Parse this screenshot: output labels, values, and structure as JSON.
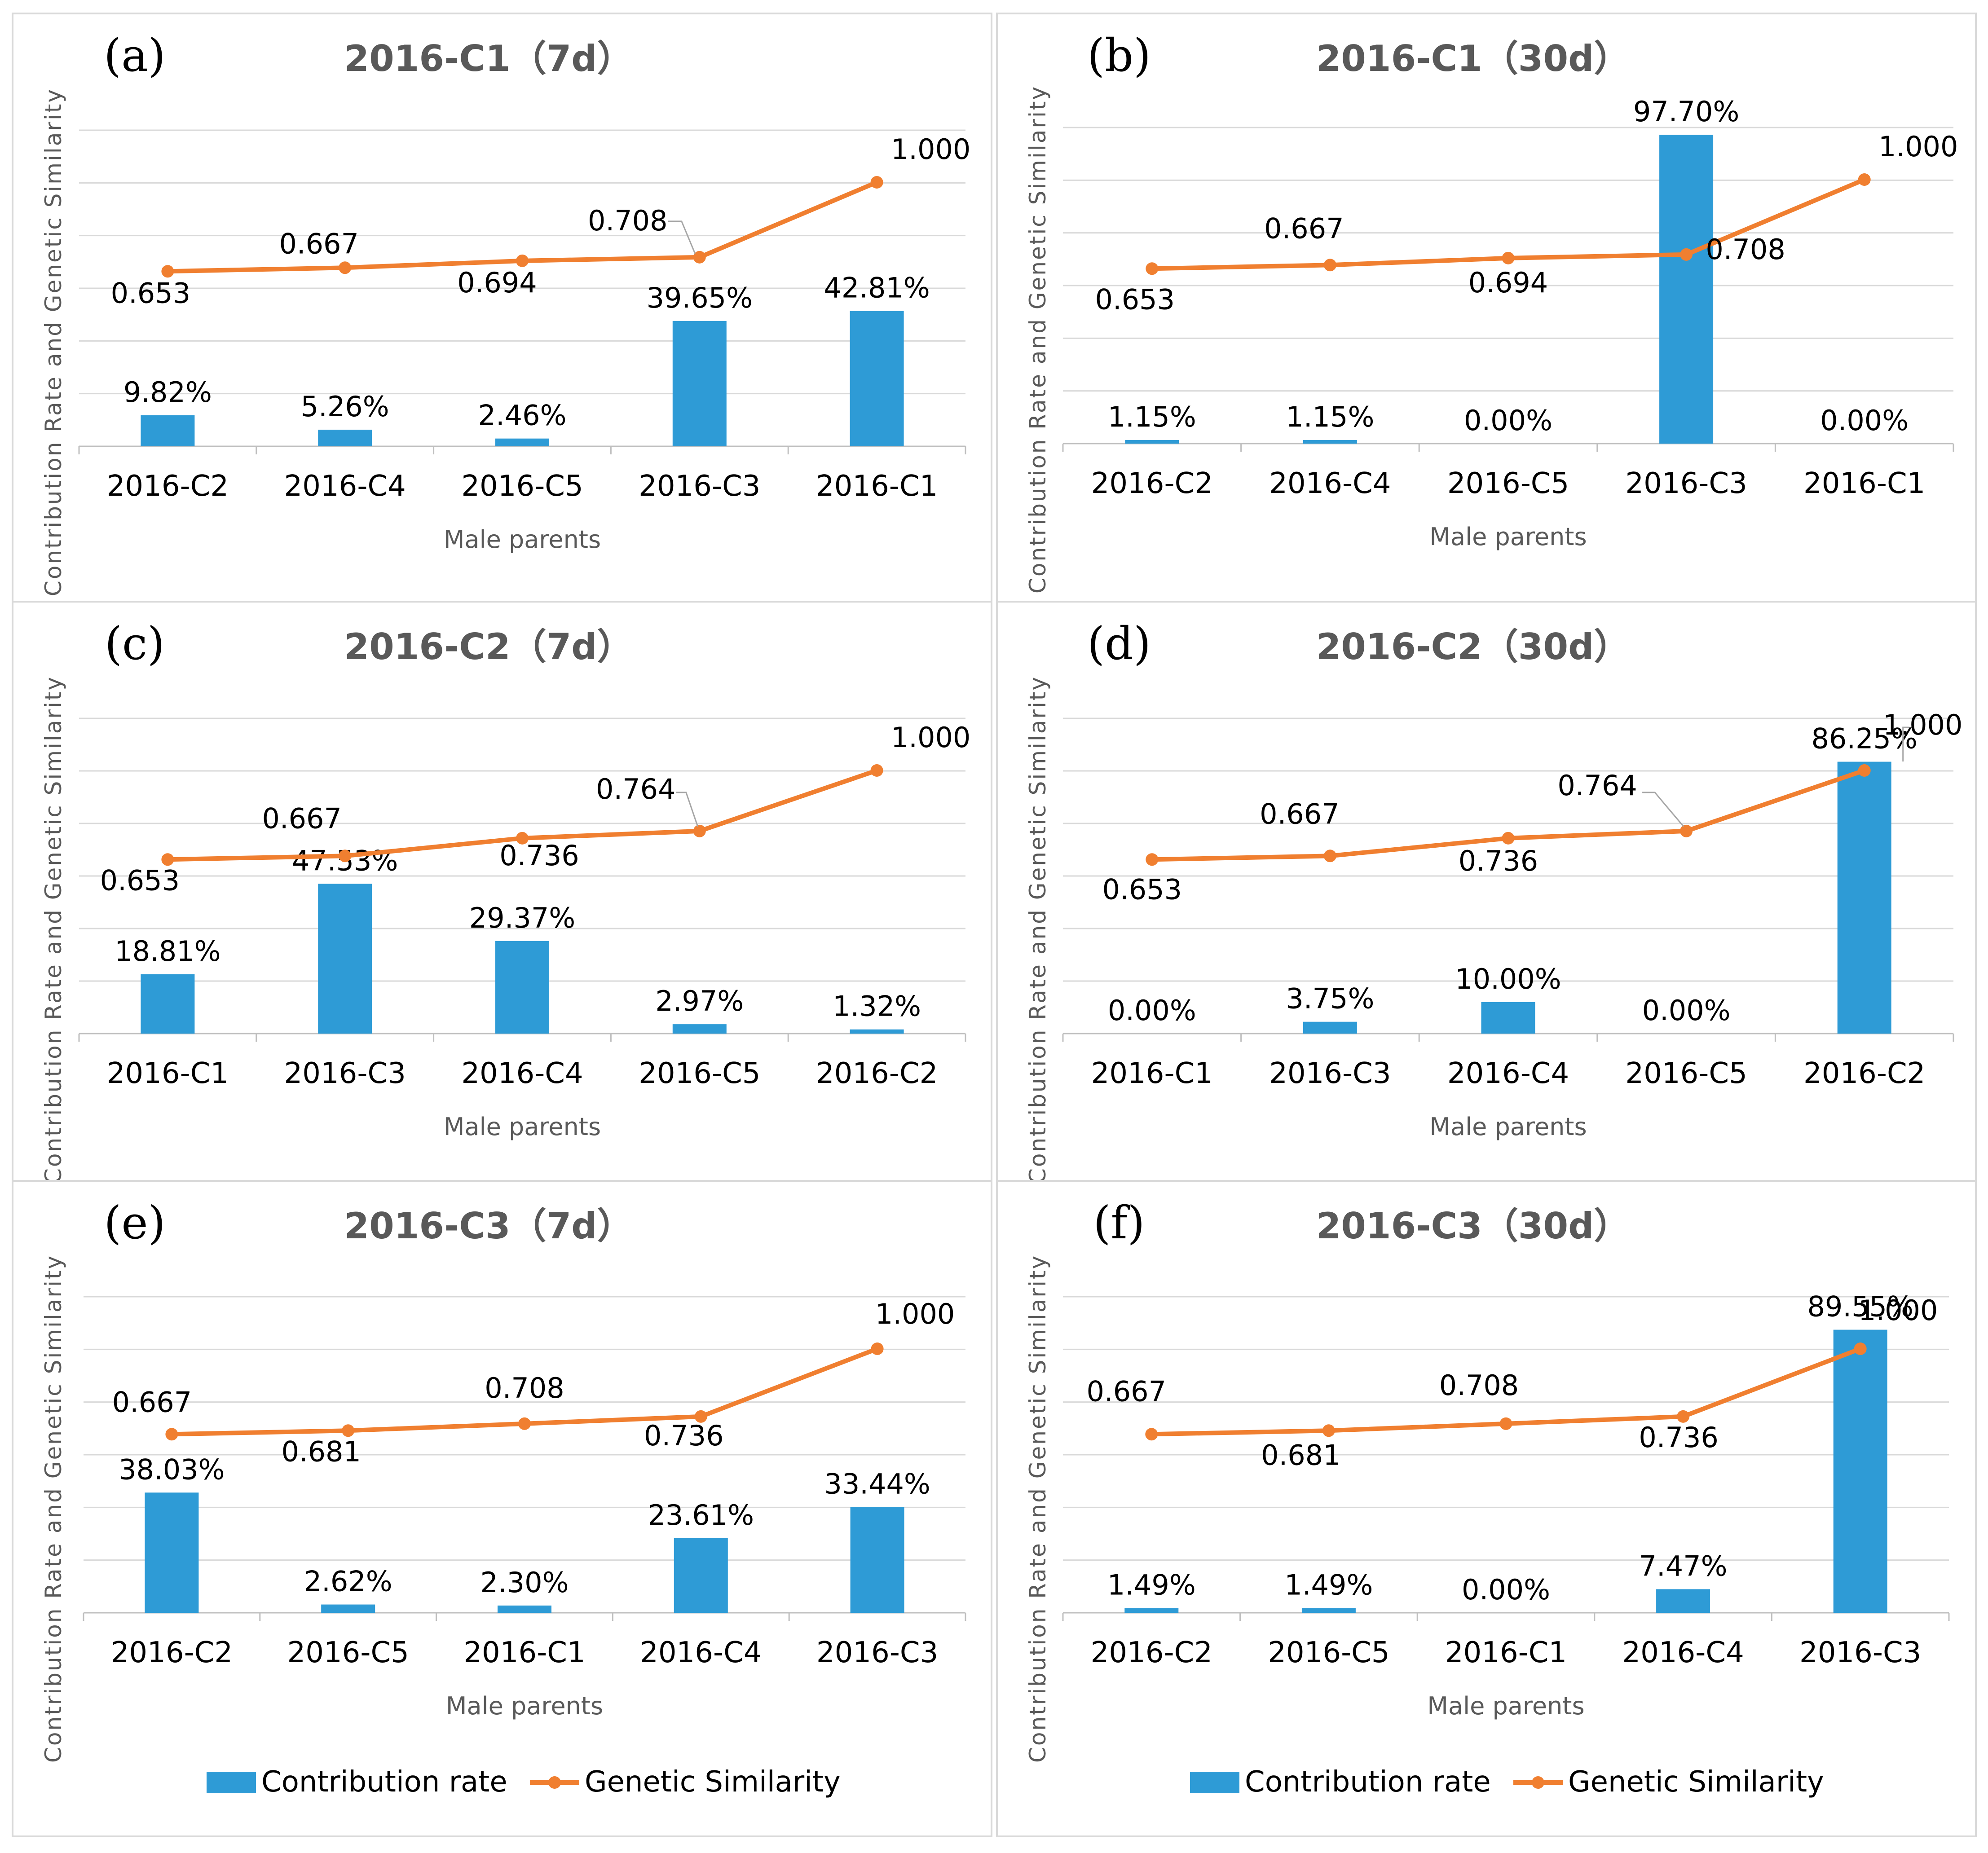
{
  "legend": {
    "contribution_label": "Contribution rate",
    "similarity_label": "Genetic Similarity"
  },
  "colors": {
    "bar": "#2e9bd6",
    "line": "#f07f30"
  },
  "chart_data": [
    {
      "letter": "(a)",
      "title": "2016-C1（7d）",
      "type": "bar+line",
      "xlabel": "Male parents",
      "ylabel": "Contribution Rate and Genetic Similarity",
      "categories": [
        "2016-C2",
        "2016-C4",
        "2016-C5",
        "2016-C3",
        "2016-C1"
      ],
      "series": [
        {
          "name": "Contribution rate",
          "values": [
            9.82,
            5.26,
            2.46,
            39.65,
            42.81
          ],
          "labels": [
            "9.82%",
            "5.26%",
            "2.46%",
            "39.65%",
            "42.81%"
          ]
        },
        {
          "name": "Genetic Similarity",
          "values": [
            0.653,
            0.667,
            0.694,
            0.708,
            1.0
          ],
          "labels": [
            "0.653",
            "0.667",
            "0.694",
            "0.708",
            "1.000"
          ]
        }
      ]
    },
    {
      "letter": "(b)",
      "title": "2016-C1（30d）",
      "type": "bar+line",
      "xlabel": "Male parents",
      "ylabel": "Contribution Rate and Genetic Similarity",
      "categories": [
        "2016-C2",
        "2016-C4",
        "2016-C5",
        "2016-C3",
        "2016-C1"
      ],
      "series": [
        {
          "name": "Contribution rate",
          "values": [
            1.15,
            1.15,
            0.0,
            97.7,
            0.0
          ],
          "labels": [
            "1.15%",
            "1.15%",
            "0.00%",
            "97.70%",
            "0.00%"
          ]
        },
        {
          "name": "Genetic Similarity",
          "values": [
            0.653,
            0.667,
            0.694,
            0.708,
            1.0
          ],
          "labels": [
            "0.653",
            "0.667",
            "0.694",
            "0.708",
            "1.000"
          ]
        }
      ]
    },
    {
      "letter": "(c)",
      "title": "2016-C2（7d）",
      "type": "bar+line",
      "xlabel": "Male parents",
      "ylabel": "Contribution Rate and Genetic Similarity",
      "categories": [
        "2016-C1",
        "2016-C3",
        "2016-C4",
        "2016-C5",
        "2016-C2"
      ],
      "series": [
        {
          "name": "Contribution rate",
          "values": [
            18.81,
            47.53,
            29.37,
            2.97,
            1.32
          ],
          "labels": [
            "18.81%",
            "47.53%",
            "29.37%",
            "2.97%",
            "1.32%"
          ]
        },
        {
          "name": "Genetic Similarity",
          "values": [
            0.653,
            0.667,
            0.736,
            0.764,
            1.0
          ],
          "labels": [
            "0.653",
            "0.667",
            "0.736",
            "0.764",
            "1.000"
          ]
        }
      ]
    },
    {
      "letter": "(d)",
      "title": "2016-C2（30d）",
      "type": "bar+line",
      "xlabel": "Male parents",
      "ylabel": "Contribution Rate and Genetic Similarity",
      "categories": [
        "2016-C1",
        "2016-C3",
        "2016-C4",
        "2016-C5",
        "2016-C2"
      ],
      "series": [
        {
          "name": "Contribution rate",
          "values": [
            0.0,
            3.75,
            10.0,
            0.0,
            86.25
          ],
          "labels": [
            "0.00%",
            "3.75%",
            "10.00%",
            "0.00%",
            "86.25%"
          ]
        },
        {
          "name": "Genetic Similarity",
          "values": [
            0.653,
            0.667,
            0.736,
            0.764,
            1.0
          ],
          "labels": [
            "0.653",
            "0.667",
            "0.736",
            "0.764",
            "1.000"
          ]
        }
      ]
    },
    {
      "letter": "(e)",
      "title": "2016-C3（7d）",
      "type": "bar+line",
      "xlabel": "Male parents",
      "ylabel": "Contribution Rate and Genetic Similarity",
      "categories": [
        "2016-C2",
        "2016-C5",
        "2016-C1",
        "2016-C4",
        "2016-C3"
      ],
      "series": [
        {
          "name": "Contribution rate",
          "values": [
            38.03,
            2.62,
            2.3,
            23.61,
            33.44
          ],
          "labels": [
            "38.03%",
            "2.62%",
            "2.30%",
            "23.61%",
            "33.44%"
          ]
        },
        {
          "name": "Genetic Similarity",
          "values": [
            0.667,
            0.681,
            0.708,
            0.736,
            1.0
          ],
          "labels": [
            "0.667",
            "0.681",
            "0.708",
            "0.736",
            "1.000"
          ]
        }
      ]
    },
    {
      "letter": "(f)",
      "title": "2016-C3（30d）",
      "type": "bar+line",
      "xlabel": "Male parents",
      "ylabel": "Contribution Rate and Genetic Similarity",
      "categories": [
        "2016-C2",
        "2016-C5",
        "2016-C1",
        "2016-C4",
        "2016-C3"
      ],
      "series": [
        {
          "name": "Contribution rate",
          "values": [
            1.49,
            1.49,
            0.0,
            7.47,
            89.55
          ],
          "labels": [
            "1.49%",
            "1.49%",
            "0.00%",
            "7.47%",
            "89.55%"
          ]
        },
        {
          "name": "Genetic Similarity",
          "values": [
            0.667,
            0.681,
            0.708,
            0.736,
            1.0
          ],
          "labels": [
            "0.667",
            "0.681",
            "0.708",
            "0.736",
            "1.000"
          ]
        }
      ]
    }
  ]
}
